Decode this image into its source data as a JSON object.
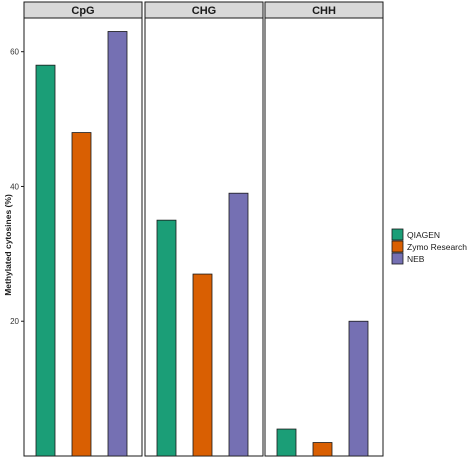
{
  "chart_data": {
    "type": "bar",
    "ylabel": "Methylated cytosines (%)",
    "ylim": [
      0,
      65
    ],
    "yticks": [
      20,
      40,
      60
    ],
    "grid": false,
    "legend_position": "right",
    "series": [
      {
        "name": "QIAGEN",
        "color": "#1B9E77"
      },
      {
        "name": "Zymo Research",
        "color": "#D95F02"
      },
      {
        "name": "NEB",
        "color": "#7570B3"
      }
    ],
    "panels": [
      {
        "label": "CpG",
        "values": [
          58,
          48,
          63
        ]
      },
      {
        "label": "CHG",
        "values": [
          35,
          27,
          39
        ]
      },
      {
        "label": "CHH",
        "values": [
          4,
          2,
          20
        ]
      }
    ]
  }
}
